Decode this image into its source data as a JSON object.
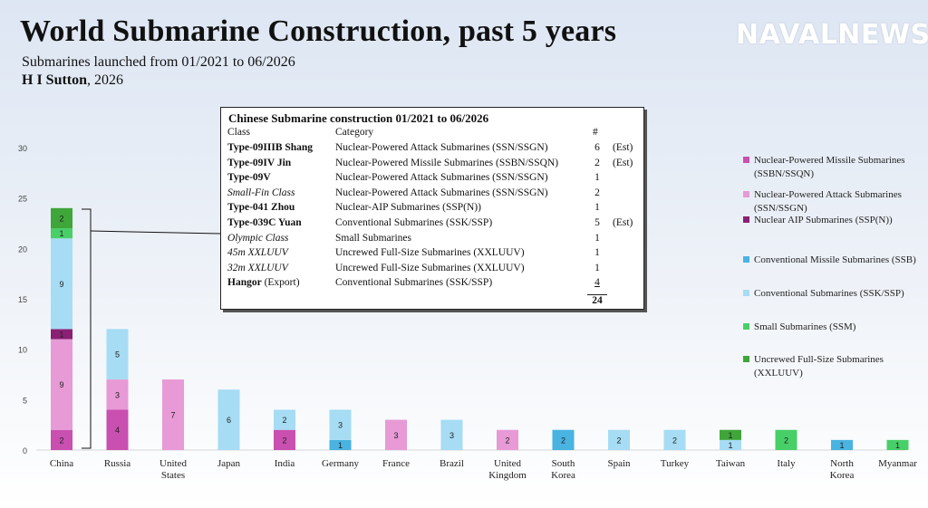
{
  "header": {
    "title": "World Submarine Construction, past 5 years",
    "subtitle": "Submarines launched from 01/2021 to 06/2026",
    "author": "H I Sutton",
    "year": ", 2026"
  },
  "logo": {
    "text": "NAVALNEWS",
    "icon": "warship-icon"
  },
  "colors": {
    "SSBN": "#c94fb0",
    "SSN": "#e79ad6",
    "SSPN": "#8a1f74",
    "SSB": "#49b3e1",
    "SSK": "#a6dcf4",
    "SSM": "#48cf68",
    "XLUUV": "#3fa63a"
  },
  "legend": [
    {
      "key": "SSBN",
      "label": "Nuclear-Powered Missile Submarines (SSBN/SSQN)"
    },
    {
      "key": "SSN",
      "label": "Nuclear-Powered Attack Submarines (SSN/SSGN)"
    },
    {
      "key": "SSPN",
      "label": "Nuclear AIP Submarines (SSP(N))"
    },
    {
      "key": "SSB",
      "label": "Conventional Missile Submarines (SSB)"
    },
    {
      "key": "SSK",
      "label": "Conventional Submarines (SSK/SSP)"
    },
    {
      "key": "SSM",
      "label": "Small Submarines (SSM)"
    },
    {
      "key": "XLUUV",
      "label": "Uncrewed Full-Size Submarines (XXLUUV)"
    }
  ],
  "chart_data": {
    "type": "bar",
    "stacked": true,
    "ylim": [
      0,
      30
    ],
    "yticks": [
      0,
      5,
      10,
      15,
      20,
      25,
      30
    ],
    "grid": false,
    "legend_position": "right",
    "categories": [
      [
        "China"
      ],
      [
        "Russia"
      ],
      [
        "United",
        "States"
      ],
      [
        "Japan"
      ],
      [
        "India"
      ],
      [
        "Germany"
      ],
      [
        "France"
      ],
      [
        "Brazil"
      ],
      [
        "United",
        "Kingdom"
      ],
      [
        "South",
        "Korea"
      ],
      [
        "Spain"
      ],
      [
        "Turkey"
      ],
      [
        "Taiwan"
      ],
      [
        "Italy"
      ],
      [
        "North",
        "Korea"
      ],
      [
        "Myanmar"
      ]
    ],
    "series": [
      {
        "key": "SSBN",
        "name": "Nuclear-Powered Missile Submarines (SSBN/SSQN)",
        "values": [
          2,
          4,
          0,
          0,
          2,
          0,
          0,
          0,
          0,
          0,
          0,
          0,
          0,
          0,
          0,
          0
        ]
      },
      {
        "key": "SSN",
        "name": "Nuclear-Powered Attack Submarines (SSN/SSGN)",
        "values": [
          9,
          3,
          7,
          0,
          0,
          0,
          3,
          0,
          2,
          0,
          0,
          0,
          0,
          0,
          0,
          0
        ]
      },
      {
        "key": "SSPN",
        "name": "Nuclear AIP Submarines (SSP(N))",
        "values": [
          1,
          0,
          0,
          0,
          0,
          0,
          0,
          0,
          0,
          0,
          0,
          0,
          0,
          0,
          0,
          0
        ]
      },
      {
        "key": "SSB",
        "name": "Conventional Missile Submarines (SSB)",
        "values": [
          0,
          0,
          0,
          0,
          0,
          1,
          0,
          0,
          0,
          2,
          0,
          0,
          0,
          0,
          1,
          0
        ]
      },
      {
        "key": "SSK",
        "name": "Conventional Submarines (SSK/SSP)",
        "values": [
          9,
          5,
          0,
          6,
          2,
          3,
          0,
          3,
          0,
          0,
          2,
          2,
          1,
          0,
          0,
          0
        ]
      },
      {
        "key": "SSM",
        "name": "Small Submarines (SSM)",
        "values": [
          1,
          0,
          0,
          0,
          0,
          0,
          0,
          0,
          0,
          0,
          0,
          0,
          0,
          2,
          0,
          1
        ]
      },
      {
        "key": "XLUUV",
        "name": "Uncrewed Full-Size Submarines (XXLUUV)",
        "values": [
          2,
          0,
          0,
          0,
          0,
          0,
          0,
          0,
          0,
          0,
          0,
          0,
          1,
          0,
          0,
          0
        ]
      }
    ]
  },
  "inset": {
    "title": "Chinese Submarine construction 01/2021 to 06/2026",
    "col_class": "Class",
    "col_category": "Category",
    "col_count": "#",
    "rows": [
      {
        "cls": "Type-09IIIB Shang",
        "style": "b",
        "cat": "Nuclear-Powered Attack Submarines (SSN/SSGN)",
        "n": "6",
        "note": "(Est)"
      },
      {
        "cls": "Type-09IV Jin",
        "style": "b",
        "cat": "Nuclear-Powered Missile Submarines (SSBN/SSQN)",
        "n": "2",
        "note": "(Est)"
      },
      {
        "cls": "Type-09V",
        "style": "b",
        "cat": "Nuclear-Powered Attack Submarines (SSN/SSGN)",
        "n": "1",
        "note": ""
      },
      {
        "cls": "Small-Fin Class",
        "style": "i",
        "cat": "Nuclear-Powered Attack Submarines (SSN/SSGN)",
        "n": "2",
        "note": ""
      },
      {
        "cls": "Type-041 Zhou",
        "style": "b",
        "cat": "Nuclear-AIP Submarines (SSP(N))",
        "n": "1",
        "note": ""
      },
      {
        "cls": "Type-039C Yuan",
        "style": "b",
        "cat": "Conventional Submarines (SSK/SSP)",
        "n": "5",
        "note": "(Est)"
      },
      {
        "cls": "Olympic Class",
        "style": "i",
        "cat": "Small Submarines",
        "n": "1",
        "note": ""
      },
      {
        "cls": "45m XXLUUV",
        "style": "i",
        "cat": "Uncrewed Full-Size Submarines (XXLUUV)",
        "n": "1",
        "note": ""
      },
      {
        "cls": "32m XXLUUV",
        "style": "i",
        "cat": "Uncrewed Full-Size Submarines (XXLUUV)",
        "n": "1",
        "note": ""
      },
      {
        "cls": "Hangor",
        "cls_suffix": " (Export)",
        "style": "b",
        "cat": "Conventional Submarines (SSK/SSP)",
        "n": "4",
        "note": ""
      }
    ],
    "total": "24"
  }
}
